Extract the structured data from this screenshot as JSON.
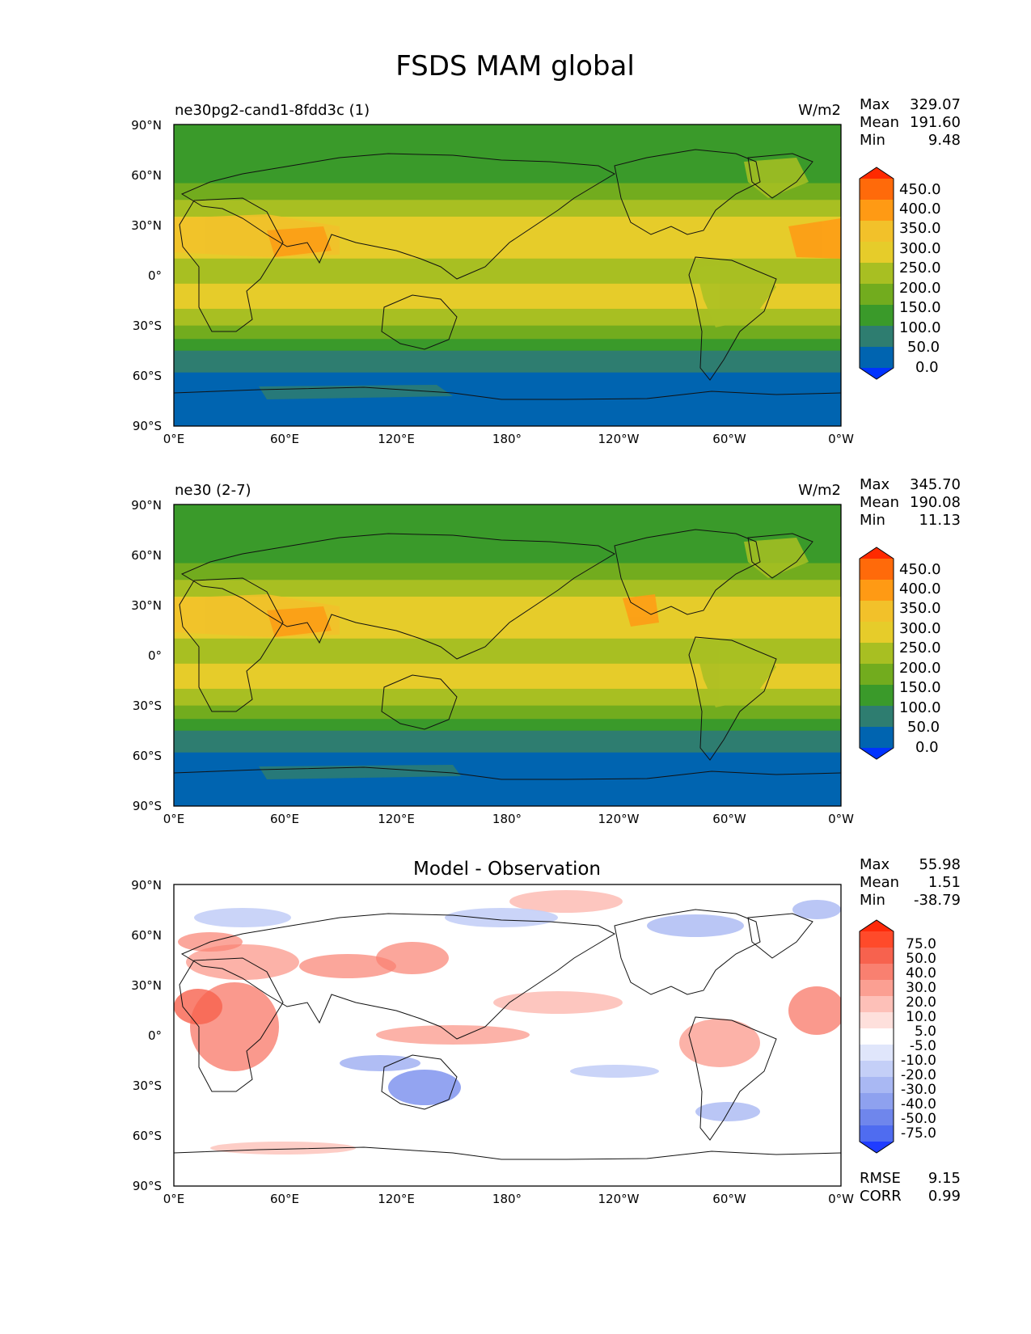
{
  "figure": {
    "title": "FSDS MAM global"
  },
  "chart_data": [
    {
      "type": "heatmap",
      "title": "ne30pg2-cand1-8fdd3c (1)",
      "units": "W/m2",
      "stats": {
        "max_label": "Max",
        "max": "329.07",
        "mean_label": "Mean",
        "mean": "191.60",
        "min_label": "Min",
        "min": "9.48"
      },
      "x_ticks": [
        "0°E",
        "60°E",
        "120°E",
        "180°",
        "120°W",
        "60°W",
        "0°W"
      ],
      "y_ticks": [
        "90°N",
        "60°N",
        "30°N",
        "0°",
        "30°S",
        "60°S",
        "90°S"
      ],
      "xlim": [
        0,
        360
      ],
      "ylim": [
        -90,
        90
      ],
      "colorbar": {
        "labels": [
          "450.0",
          "400.0",
          "350.0",
          "300.0",
          "250.0",
          "200.0",
          "150.0",
          "100.0",
          "50.0",
          "0.0"
        ],
        "colors": [
          "#ff2a00",
          "#ff6a0a",
          "#ff9a14",
          "#f2c12a",
          "#e6cc2a",
          "#a8bf22",
          "#72ac1e",
          "#3a9a2a",
          "#2e7d70",
          "#0064b0",
          "#0033ff"
        ]
      },
      "bands": [
        {
          "lat_from": 90,
          "lat_to": 80,
          "value": 125
        },
        {
          "lat_from": 80,
          "lat_to": 70,
          "value": 110
        },
        {
          "lat_from": 70,
          "lat_to": 55,
          "value": 140
        },
        {
          "lat_from": 55,
          "lat_to": 45,
          "value": 170
        },
        {
          "lat_from": 45,
          "lat_to": 35,
          "value": 220
        },
        {
          "lat_from": 35,
          "lat_to": 20,
          "value": 280
        },
        {
          "lat_from": 20,
          "lat_to": 10,
          "value": 255
        },
        {
          "lat_from": 10,
          "lat_to": -5,
          "value": 240
        },
        {
          "lat_from": -5,
          "lat_to": -20,
          "value": 265
        },
        {
          "lat_from": -20,
          "lat_to": -30,
          "value": 220
        },
        {
          "lat_from": -30,
          "lat_to": -38,
          "value": 180
        },
        {
          "lat_from": -38,
          "lat_to": -45,
          "value": 140
        },
        {
          "lat_from": -45,
          "lat_to": -58,
          "value": 80
        },
        {
          "lat_from": -58,
          "lat_to": -90,
          "value": 30
        }
      ]
    },
    {
      "type": "heatmap",
      "title": "ne30 (2-7)",
      "units": "W/m2",
      "stats": {
        "max_label": "Max",
        "max": "345.70",
        "mean_label": "Mean",
        "mean": "190.08",
        "min_label": "Min",
        "min": "11.13"
      },
      "x_ticks": [
        "0°E",
        "60°E",
        "120°E",
        "180°",
        "120°W",
        "60°W",
        "0°W"
      ],
      "y_ticks": [
        "90°N",
        "60°N",
        "30°N",
        "0°",
        "30°S",
        "60°S",
        "90°S"
      ],
      "xlim": [
        0,
        360
      ],
      "ylim": [
        -90,
        90
      ],
      "colorbar": {
        "labels": [
          "450.0",
          "400.0",
          "350.0",
          "300.0",
          "250.0",
          "200.0",
          "150.0",
          "100.0",
          "50.0",
          "0.0"
        ],
        "colors": [
          "#ff2a00",
          "#ff6a0a",
          "#ff9a14",
          "#f2c12a",
          "#e6cc2a",
          "#a8bf22",
          "#72ac1e",
          "#3a9a2a",
          "#2e7d70",
          "#0064b0",
          "#0033ff"
        ]
      },
      "bands": [
        {
          "lat_from": 90,
          "lat_to": 80,
          "value": 125
        },
        {
          "lat_from": 80,
          "lat_to": 70,
          "value": 115
        },
        {
          "lat_from": 70,
          "lat_to": 55,
          "value": 145
        },
        {
          "lat_from": 55,
          "lat_to": 45,
          "value": 175
        },
        {
          "lat_from": 45,
          "lat_to": 35,
          "value": 225
        },
        {
          "lat_from": 35,
          "lat_to": 20,
          "value": 285
        },
        {
          "lat_from": 20,
          "lat_to": 10,
          "value": 265
        },
        {
          "lat_from": 10,
          "lat_to": -5,
          "value": 245
        },
        {
          "lat_from": -5,
          "lat_to": -20,
          "value": 270
        },
        {
          "lat_from": -20,
          "lat_to": -30,
          "value": 225
        },
        {
          "lat_from": -30,
          "lat_to": -38,
          "value": 185
        },
        {
          "lat_from": -38,
          "lat_to": -45,
          "value": 140
        },
        {
          "lat_from": -45,
          "lat_to": -58,
          "value": 80
        },
        {
          "lat_from": -58,
          "lat_to": -90,
          "value": 30
        }
      ]
    },
    {
      "type": "heatmap",
      "title": "Model - Observation",
      "units": "",
      "stats": {
        "max_label": "Max",
        "max": "55.98",
        "mean_label": "Mean",
        "mean": "1.51",
        "min_label": "Min",
        "min": "-38.79"
      },
      "metrics": {
        "rmse_label": "RMSE",
        "rmse": "9.15",
        "corr_label": "CORR",
        "corr": "0.99"
      },
      "x_ticks": [
        "0°E",
        "60°E",
        "120°E",
        "180°",
        "120°W",
        "60°W",
        "0°W"
      ],
      "y_ticks": [
        "90°N",
        "60°N",
        "30°N",
        "0°",
        "30°S",
        "60°S",
        "90°S"
      ],
      "xlim": [
        0,
        360
      ],
      "ylim": [
        -90,
        90
      ],
      "colorbar": {
        "labels": [
          "75.0",
          "50.0",
          "40.0",
          "30.0",
          "20.0",
          "10.0",
          "5.0",
          "-5.0",
          "-10.0",
          "-20.0",
          "-30.0",
          "-40.0",
          "-50.0",
          "-75.0"
        ],
        "colors": [
          "#ff2a0a",
          "#ff4a2a",
          "#f7624e",
          "#f98070",
          "#fb9f92",
          "#fdc0b8",
          "#fee0dc",
          "#ffffff",
          "#e0e6fb",
          "#c4cff7",
          "#a9b8f3",
          "#8ea1ef",
          "#6f86ec",
          "#4f6cf0",
          "#1f3cff"
        ]
      }
    }
  ]
}
